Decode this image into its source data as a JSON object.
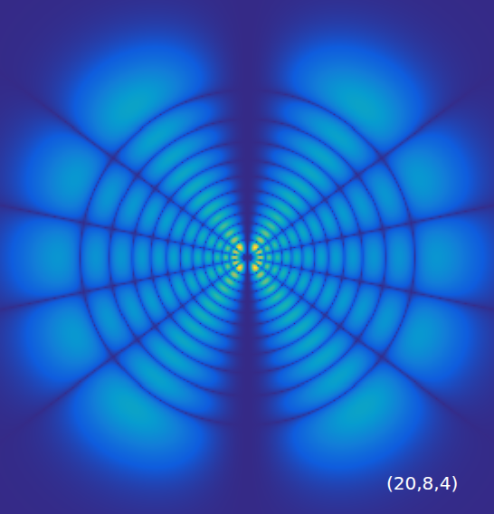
{
  "chart_data": {
    "type": "heatmap",
    "title": "(20,8,4)",
    "quantum_numbers": {
      "n": 20,
      "l": 8,
      "m": 4
    },
    "xlim": [
      -900,
      900
    ],
    "ylim": [
      -936,
      936
    ],
    "color": "parula",
    "tick_labels": false,
    "grid": false
  }
}
